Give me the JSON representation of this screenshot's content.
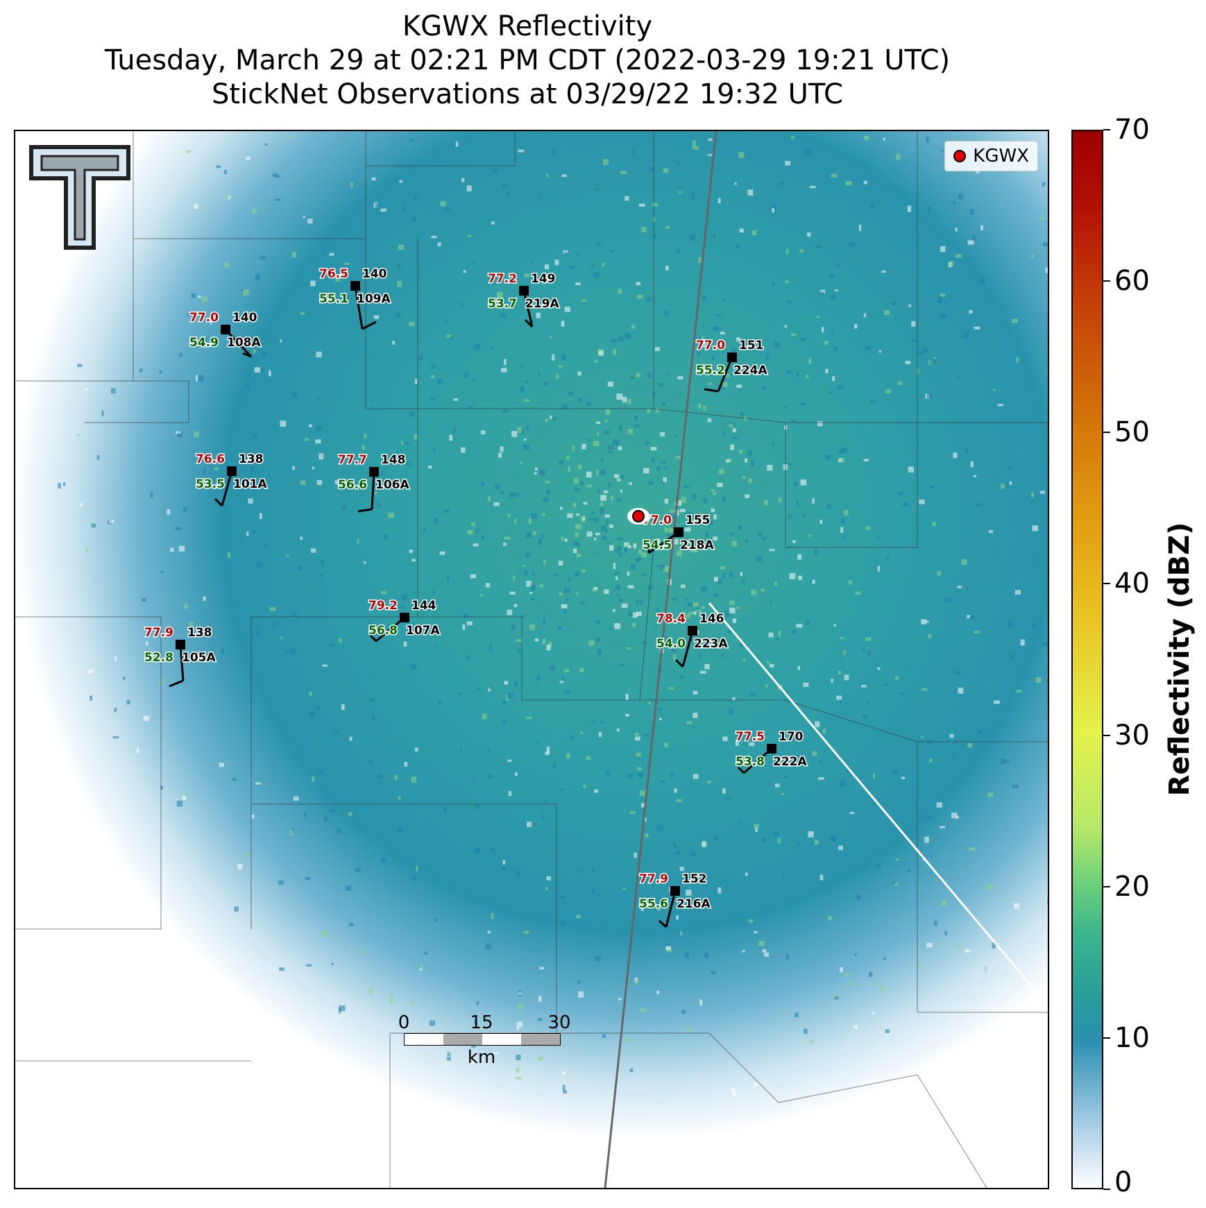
{
  "title": {
    "line1": "KGWX Reflectivity",
    "line2": "Tuesday, March 29 at 02:21 PM CDT (2022-03-29 19:21 UTC)",
    "line3": "StickNet Observations at 03/29/22 19:32 UTC"
  },
  "legend": {
    "label": "KGWX"
  },
  "colorbar": {
    "label": "Reflectivity (dBZ)",
    "ticks": [
      "0",
      "10",
      "20",
      "30",
      "40",
      "50",
      "60",
      "70"
    ],
    "range": [
      0,
      70
    ]
  },
  "scalebar": {
    "ticks": [
      "0",
      "15",
      "30"
    ],
    "unit": "km"
  },
  "colors": {
    "temp": "#b00000",
    "dew": "#006400",
    "radar_site": "#e00000",
    "echo": "#2a9aa8"
  },
  "stations": [
    {
      "id": "109A",
      "temp": "76.5",
      "dew": "55.1",
      "pres": "140"
    },
    {
      "id": "219A",
      "temp": "77.2",
      "dew": "53.7",
      "pres": "149"
    },
    {
      "id": "108A",
      "temp": "77.0",
      "dew": "54.9",
      "pres": "140"
    },
    {
      "id": "224A",
      "temp": "77.0",
      "dew": "55.2",
      "pres": "151"
    },
    {
      "id": "101A",
      "temp": "76.6",
      "dew": "53.5",
      "pres": "138"
    },
    {
      "id": "106A",
      "temp": "77.7",
      "dew": "56.6",
      "pres": "148"
    },
    {
      "id": "218A",
      "temp": "77.0",
      "dew": "54.5",
      "pres": "155"
    },
    {
      "id": "107A",
      "temp": "79.2",
      "dew": "56.8",
      "pres": "144"
    },
    {
      "id": "223A",
      "temp": "78.4",
      "dew": "54.0",
      "pres": "146"
    },
    {
      "id": "105A",
      "temp": "77.9",
      "dew": "52.8",
      "pres": "138"
    },
    {
      "id": "222A",
      "temp": "77.5",
      "dew": "53.8",
      "pres": "170"
    },
    {
      "id": "216A",
      "temp": "77.9",
      "dew": "55.6",
      "pres": "152"
    }
  ]
}
